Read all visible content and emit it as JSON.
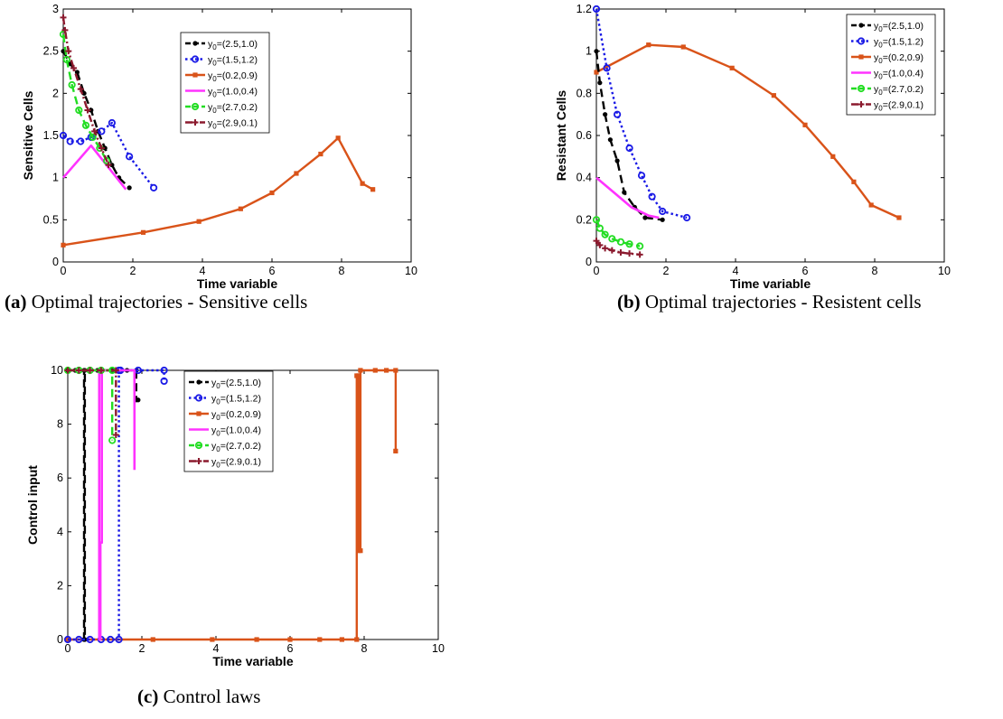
{
  "colors": {
    "y1": "#000000",
    "y2": "#1a1ae6",
    "y3": "#d95319",
    "y4": "#ff33ff",
    "y5": "#22dd22",
    "y6": "#8b1a2e"
  },
  "chart_data": [
    {
      "type": "line",
      "panel_letter": "(a)",
      "caption": "Optimal trajectories - Sensitive cells",
      "xlabel": "Time variable",
      "ylabel": "Sensitive Cells",
      "xlim": [
        0,
        10
      ],
      "ylim": [
        0,
        3
      ],
      "xticks": [
        "0",
        "2",
        "4",
        "6",
        "8",
        "10"
      ],
      "yticks": [
        "0",
        "0.5",
        "1",
        "1.5",
        "2",
        "2.5",
        "3"
      ],
      "legend_position": "top-center",
      "series": [
        {
          "name": "y0=(2.5,1.0)",
          "label_main": "y",
          "label_sub": "0",
          "label_rest": "=(2.5,1.0)",
          "color_key": "y1",
          "marker": "dot",
          "dash": "dashed",
          "x": [
            0,
            0.2,
            0.4,
            0.6,
            0.8,
            1.0,
            1.2,
            1.4,
            1.6,
            1.9
          ],
          "y": [
            2.5,
            2.35,
            2.25,
            2.0,
            1.8,
            1.55,
            1.35,
            1.15,
            1.0,
            0.88
          ]
        },
        {
          "name": "y0=(1.5,1.2)",
          "label_main": "y",
          "label_sub": "0",
          "label_rest": "=(1.5,1.2)",
          "color_key": "y2",
          "marker": "circle",
          "dash": "dotted",
          "x": [
            0,
            0.2,
            0.5,
            0.8,
            1.1,
            1.4,
            1.9,
            2.6
          ],
          "y": [
            1.5,
            1.43,
            1.43,
            1.48,
            1.55,
            1.65,
            1.25,
            0.88
          ]
        },
        {
          "name": "y0=(0.2,0.9)",
          "label_main": "y",
          "label_sub": "0",
          "label_rest": "=(0.2,0.9)",
          "color_key": "y3",
          "marker": "square",
          "dash": "solid",
          "x": [
            0,
            2.3,
            3.9,
            5.1,
            6.0,
            6.7,
            7.4,
            7.9,
            8.6,
            8.9
          ],
          "y": [
            0.2,
            0.35,
            0.48,
            0.63,
            0.82,
            1.05,
            1.28,
            1.47,
            0.93,
            0.86
          ]
        },
        {
          "name": "y0=(1.0,0.4)",
          "label_main": "y",
          "label_sub": "0",
          "label_rest": "=(1.0,0.4)",
          "color_key": "y4",
          "marker": "none",
          "dash": "solid",
          "x": [
            0,
            0.8,
            1.8
          ],
          "y": [
            1.0,
            1.38,
            0.86
          ]
        },
        {
          "name": "y0=(2.7,0.2)",
          "label_main": "y",
          "label_sub": "0",
          "label_rest": "=(2.7,0.2)",
          "color_key": "y5",
          "marker": "circle",
          "dash": "dashed",
          "x": [
            0,
            0.1,
            0.25,
            0.45,
            0.65,
            0.85,
            1.05,
            1.25
          ],
          "y": [
            2.7,
            2.4,
            2.1,
            1.8,
            1.62,
            1.48,
            1.35,
            1.2
          ]
        },
        {
          "name": "y0=(2.9,0.1)",
          "label_main": "y",
          "label_sub": "0",
          "label_rest": "=(2.9,0.1)",
          "color_key": "y6",
          "marker": "plus",
          "dash": "dashdot",
          "x": [
            0,
            0.05,
            0.15,
            0.3,
            0.5,
            0.7,
            0.9,
            1.1,
            1.3
          ],
          "y": [
            2.9,
            2.75,
            2.5,
            2.3,
            2.05,
            1.8,
            1.55,
            1.35,
            1.15
          ]
        }
      ]
    },
    {
      "type": "line",
      "panel_letter": "(b)",
      "caption": "Optimal trajectories - Resistent cells",
      "xlabel": "Time variable",
      "ylabel": "Resistant  Cells",
      "xlim": [
        0,
        10
      ],
      "ylim": [
        0,
        1.2
      ],
      "xticks": [
        "0",
        "2",
        "4",
        "6",
        "8",
        "10"
      ],
      "yticks": [
        "0",
        "0.2",
        "0.4",
        "0.6",
        "0.8",
        "1",
        "1.2"
      ],
      "legend_position": "top-right",
      "series": [
        {
          "name": "y0=(2.5,1.0)",
          "label_main": "y",
          "label_sub": "0",
          "label_rest": "=(2.5,1.0)",
          "color_key": "y1",
          "marker": "dot",
          "dash": "dashed",
          "x": [
            0,
            0.1,
            0.25,
            0.4,
            0.6,
            0.8,
            1.1,
            1.4,
            1.9
          ],
          "y": [
            1.0,
            0.85,
            0.7,
            0.58,
            0.48,
            0.33,
            0.26,
            0.21,
            0.2
          ]
        },
        {
          "name": "y0=(1.5,1.2)",
          "label_main": "y",
          "label_sub": "0",
          "label_rest": "=(1.5,1.2)",
          "color_key": "y2",
          "marker": "circle",
          "dash": "dotted",
          "x": [
            0,
            0.3,
            0.6,
            0.95,
            1.3,
            1.6,
            1.9,
            2.6
          ],
          "y": [
            1.2,
            0.92,
            0.7,
            0.54,
            0.41,
            0.31,
            0.24,
            0.21
          ]
        },
        {
          "name": "y0=(0.2,0.9)",
          "label_main": "y",
          "label_sub": "0",
          "label_rest": "=(0.2,0.9)",
          "color_key": "y3",
          "marker": "square",
          "dash": "solid",
          "x": [
            0,
            1.5,
            2.5,
            3.9,
            5.1,
            6.0,
            6.8,
            7.4,
            7.9,
            8.7
          ],
          "y": [
            0.9,
            1.03,
            1.02,
            0.92,
            0.79,
            0.65,
            0.5,
            0.38,
            0.27,
            0.21
          ]
        },
        {
          "name": "y0=(1.0,0.4)",
          "label_main": "y",
          "label_sub": "0",
          "label_rest": "=(1.0,0.4)",
          "color_key": "y4",
          "marker": "none",
          "dash": "solid",
          "x": [
            0,
            0.5,
            1.0,
            1.5,
            1.8
          ],
          "y": [
            0.4,
            0.33,
            0.26,
            0.22,
            0.21
          ]
        },
        {
          "name": "y0=(2.7,0.2)",
          "label_main": "y",
          "label_sub": "0",
          "label_rest": "=(2.7,0.2)",
          "color_key": "y5",
          "marker": "circle",
          "dash": "dashed",
          "x": [
            0,
            0.1,
            0.25,
            0.45,
            0.7,
            0.95,
            1.25
          ],
          "y": [
            0.2,
            0.16,
            0.13,
            0.11,
            0.095,
            0.085,
            0.075
          ]
        },
        {
          "name": "y0=(2.9,0.1)",
          "label_main": "y",
          "label_sub": "0",
          "label_rest": "=(2.9,0.1)",
          "color_key": "y6",
          "marker": "plus",
          "dash": "dashdot",
          "x": [
            0,
            0.1,
            0.25,
            0.45,
            0.7,
            0.95,
            1.25
          ],
          "y": [
            0.1,
            0.08,
            0.065,
            0.055,
            0.045,
            0.04,
            0.035
          ]
        }
      ]
    },
    {
      "type": "line",
      "panel_letter": "(c)",
      "caption": "Control laws",
      "xlabel": "Time variable",
      "ylabel": "Control input",
      "xlim": [
        0,
        10
      ],
      "ylim": [
        0,
        10
      ],
      "xticks": [
        "0",
        "2",
        "4",
        "6",
        "8",
        "10"
      ],
      "yticks": [
        "0",
        "2",
        "4",
        "6",
        "8",
        "10"
      ],
      "legend_position": "top-center",
      "series": [
        {
          "name": "y0=(2.5,1.0)",
          "label_main": "y",
          "label_sub": "0",
          "label_rest": "=(2.5,1.0)",
          "color_key": "y1",
          "marker": "dot",
          "dash": "dashed",
          "x": [
            0,
            0.2,
            0.44,
            0.44,
            0.46,
            0.46,
            0.8,
            1.2,
            1.6,
            1.85,
            1.85,
            1.9
          ],
          "y": [
            10,
            10,
            10,
            0,
            0,
            10,
            10,
            10,
            10,
            10,
            8.9,
            8.9
          ]
        },
        {
          "name": "y0=(1.5,1.2)",
          "label_main": "y",
          "label_sub": "0",
          "label_rest": "=(1.5,1.2)",
          "color_key": "y2",
          "marker": "circle",
          "dash": "dotted",
          "x": [
            0,
            0.3,
            0.6,
            0.9,
            1.15,
            1.38,
            1.38,
            1.42,
            1.42,
            1.9,
            2.6,
            2.6
          ],
          "y": [
            0,
            0,
            0,
            0,
            0,
            0,
            10,
            10,
            10,
            10,
            10,
            9.6
          ]
        },
        {
          "name": "y0=(0.2,0.9)",
          "label_main": "y",
          "label_sub": "0",
          "label_rest": "=(0.2,0.9)",
          "color_key": "y3",
          "marker": "square",
          "dash": "solid",
          "x": [
            0,
            2.3,
            3.9,
            5.1,
            6.0,
            6.8,
            7.4,
            7.8,
            7.8,
            7.85,
            7.85,
            7.9,
            7.9,
            8.3,
            8.6,
            8.85,
            8.85
          ],
          "y": [
            0,
            0,
            0,
            0,
            0,
            0,
            0,
            0,
            9.8,
            9.8,
            3.3,
            3.3,
            10,
            10,
            10,
            10,
            7.0
          ]
        },
        {
          "name": "y0=(1.0,0.4)",
          "label_main": "y",
          "label_sub": "0",
          "label_rest": "=(1.0,0.4)",
          "color_key": "y4",
          "marker": "none",
          "dash": "solid",
          "x": [
            0,
            0.85,
            0.85,
            0.88,
            0.88,
            0.92,
            0.92,
            1.8,
            1.8
          ],
          "y": [
            10,
            10,
            0,
            0,
            3.6,
            3.6,
            10,
            10,
            6.3
          ]
        },
        {
          "name": "y0=(2.7,0.2)",
          "label_main": "y",
          "label_sub": "0",
          "label_rest": "=(2.7,0.2)",
          "color_key": "y5",
          "marker": "circle",
          "dash": "dashed",
          "x": [
            0,
            0.3,
            0.6,
            0.9,
            1.2,
            1.2
          ],
          "y": [
            10,
            10,
            10,
            10,
            10,
            7.4
          ]
        },
        {
          "name": "y0=(2.9,0.1)",
          "label_main": "y",
          "label_sub": "0",
          "label_rest": "=(2.9,0.1)",
          "color_key": "y6",
          "marker": "plus",
          "dash": "dashdot",
          "x": [
            0,
            0.3,
            0.6,
            0.9,
            1.3,
            1.3
          ],
          "y": [
            10,
            10,
            10,
            10,
            10,
            7.6
          ]
        }
      ]
    }
  ]
}
